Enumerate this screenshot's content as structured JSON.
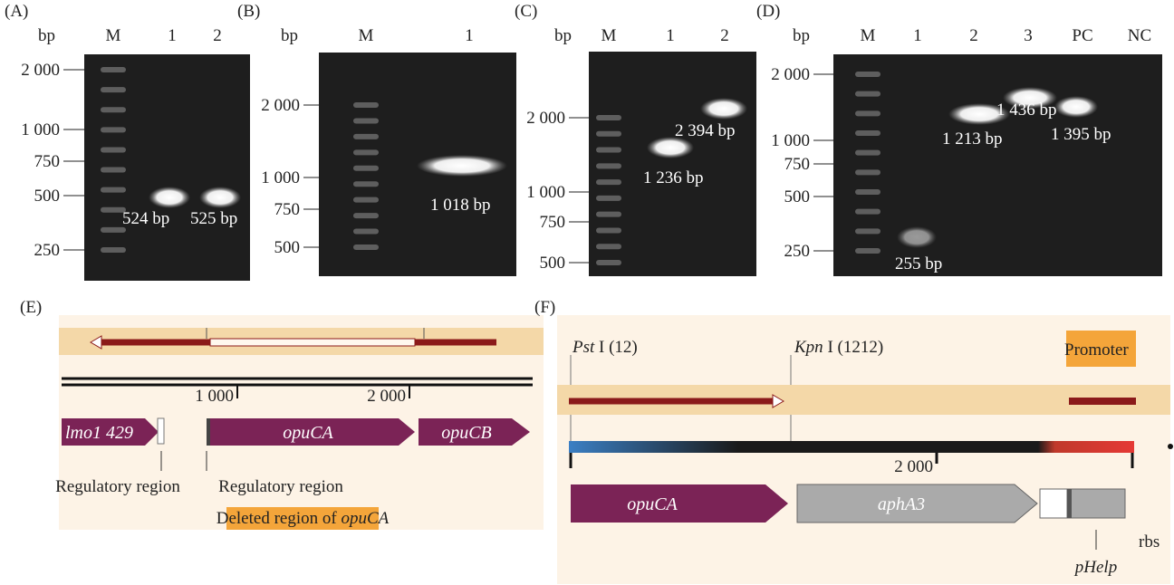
{
  "gels": [
    {
      "label": "(A)",
      "unit": "bp",
      "lanes": [
        "M",
        "1",
        "2"
      ],
      "ladder": [
        "2 000",
        "1 000",
        "750",
        "500",
        "250"
      ],
      "bands": [
        "524 bp",
        "525 bp"
      ]
    },
    {
      "label": "(B)",
      "unit": "bp",
      "lanes": [
        "M",
        "1"
      ],
      "ladder": [
        "2 000",
        "1 000",
        "750",
        "500"
      ],
      "bands": [
        "1 018 bp"
      ]
    },
    {
      "label": "(C)",
      "unit": "bp",
      "lanes": [
        "M",
        "1",
        "2"
      ],
      "ladder": [
        "2 000",
        "1 000",
        "750",
        "500"
      ],
      "bands": [
        "1 236 bp",
        "2 394 bp"
      ]
    },
    {
      "label": "(D)",
      "unit": "bp",
      "lanes": [
        "M",
        "1",
        "2",
        "3",
        "PC",
        "NC"
      ],
      "ladder": [
        "2 000",
        "1 000",
        "750",
        "500",
        "250"
      ],
      "bands": [
        "255 bp",
        "1 213 bp",
        "1 436 bp",
        "1 395 bp"
      ]
    }
  ],
  "map_e": {
    "label": "(E)",
    "scale": [
      "1 000",
      "2 000"
    ],
    "genes": [
      "lmo1 429",
      "opuCA",
      "opuCB"
    ],
    "regions": [
      "Regulatory region",
      "Regulatory region"
    ],
    "deleted": {
      "text": "Deleted region of ",
      "italic": "opuCA"
    }
  },
  "map_f": {
    "label": "(F)",
    "sites": [
      {
        "italic": "Pst",
        "text": " I (12)"
      },
      {
        "italic": "Kpn",
        "text": " I (1212)"
      }
    ],
    "promoter": "Promoter",
    "scale": [
      "2 000"
    ],
    "genes": [
      "opuCA",
      "aphA3"
    ],
    "rbs": "rbs",
    "phelp": "pHelp"
  }
}
